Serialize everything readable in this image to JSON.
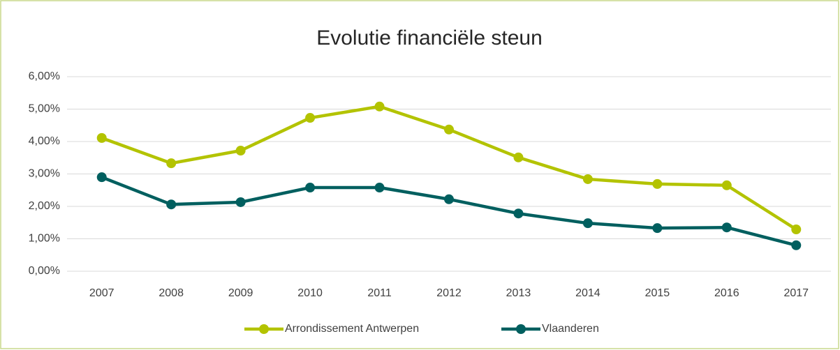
{
  "chart_data": {
    "type": "line",
    "title": "Evolutie financiële steun",
    "categories": [
      "2007",
      "2008",
      "2009",
      "2010",
      "2011",
      "2012",
      "2013",
      "2014",
      "2015",
      "2016",
      "2017"
    ],
    "series": [
      {
        "name": "Arrondissement Antwerpen",
        "color": "#b3c300",
        "values": [
          4.11,
          3.33,
          3.72,
          4.73,
          5.08,
          4.37,
          3.51,
          2.84,
          2.69,
          2.65,
          1.29
        ]
      },
      {
        "name": "Vlaanderen",
        "color": "#005f5f",
        "values": [
          2.9,
          2.06,
          2.13,
          2.58,
          2.58,
          2.22,
          1.78,
          1.48,
          1.33,
          1.35,
          0.8
        ]
      }
    ],
    "ylim": [
      0,
      6
    ],
    "yticks": [
      {
        "value": 0,
        "label": "0,00%"
      },
      {
        "value": 1,
        "label": "1,00%"
      },
      {
        "value": 2,
        "label": "2,00%"
      },
      {
        "value": 3,
        "label": "3,00%"
      },
      {
        "value": 4,
        "label": "4,00%"
      },
      {
        "value": 5,
        "label": "5,00%"
      },
      {
        "value": 6,
        "label": "6,00%"
      }
    ],
    "grid": true,
    "legend": "bottom"
  }
}
